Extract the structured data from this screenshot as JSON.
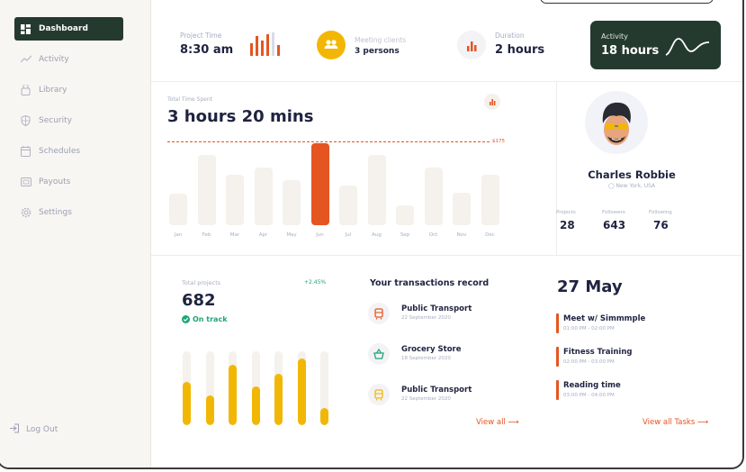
{
  "sidebar": {
    "items": [
      {
        "label": "Dashboard",
        "icon": "dashboard-icon"
      },
      {
        "label": "Activity",
        "icon": "activity-icon"
      },
      {
        "label": "Library",
        "icon": "library-icon"
      },
      {
        "label": "Security",
        "icon": "shield-icon"
      },
      {
        "label": "Schedules",
        "icon": "calendar-icon"
      },
      {
        "label": "Payouts",
        "icon": "payouts-icon"
      },
      {
        "label": "Settings",
        "icon": "gear-icon"
      }
    ],
    "logout": "Log Out"
  },
  "stats": {
    "project_time": {
      "label": "Project Time",
      "value": "8:30 am"
    },
    "meeting": {
      "label": "Meeting clients",
      "value": "3 persons"
    },
    "duration": {
      "label": "Duration",
      "value": "2 hours"
    },
    "activity": {
      "label": "Activity",
      "value": "18 hours"
    }
  },
  "time_spent": {
    "label": "Total Time Spent",
    "value": "3 hours 20 mins",
    "threshold_label": "$175"
  },
  "chart_data": {
    "type": "bar",
    "categories": [
      "Jan",
      "Feb",
      "Mar",
      "Apr",
      "May",
      "Jun",
      "Jul",
      "Aug",
      "Sep",
      "Oct",
      "Nov",
      "Dec"
    ],
    "values": [
      0.38,
      0.86,
      0.62,
      0.7,
      0.55,
      1.0,
      0.48,
      0.86,
      0.24,
      0.7,
      0.4,
      0.62
    ],
    "highlight_index": 5,
    "accent": "#e55522",
    "bar_color": "#f5f1ec"
  },
  "profile": {
    "name": "Charles Robbie",
    "location": "New York, USA",
    "stats": [
      {
        "label": "Projects",
        "value": "28"
      },
      {
        "label": "Followers",
        "value": "643"
      },
      {
        "label": "Following",
        "value": "76"
      }
    ]
  },
  "projects": {
    "label": "Total projects",
    "value": "682",
    "change": "+2.45%",
    "status": "On track",
    "bars": [
      0.58,
      0.4,
      0.82,
      0.52,
      0.69,
      0.9,
      0.23
    ]
  },
  "transactions": {
    "title": "Your transactions record",
    "items": [
      {
        "title": "Public Transport",
        "date": "22 September 2020",
        "icon": "bus-icon",
        "color": "#e55522"
      },
      {
        "title": "Grocery Store",
        "date": "18 September 2020",
        "icon": "basket-icon",
        "color": "#1fa675"
      },
      {
        "title": "Public Transport",
        "date": "22 September 2020",
        "icon": "bus-icon",
        "color": "#f2b705"
      }
    ],
    "view_all": "View all"
  },
  "schedule": {
    "date": "27 May",
    "events": [
      {
        "title": "Meet w/ Simmmple",
        "time": "01:00 PM - 02:00 PM"
      },
      {
        "title": "Fitness Training",
        "time": "02:00 PM - 03:00 PM"
      },
      {
        "title": "Reading time",
        "time": "03:00 PM - 04:00 PM"
      }
    ],
    "view_all": "View all Tasks"
  },
  "colors": {
    "accent": "#e55522",
    "dark": "#253a2e",
    "yellow": "#f2b705",
    "green": "#1fa675"
  }
}
